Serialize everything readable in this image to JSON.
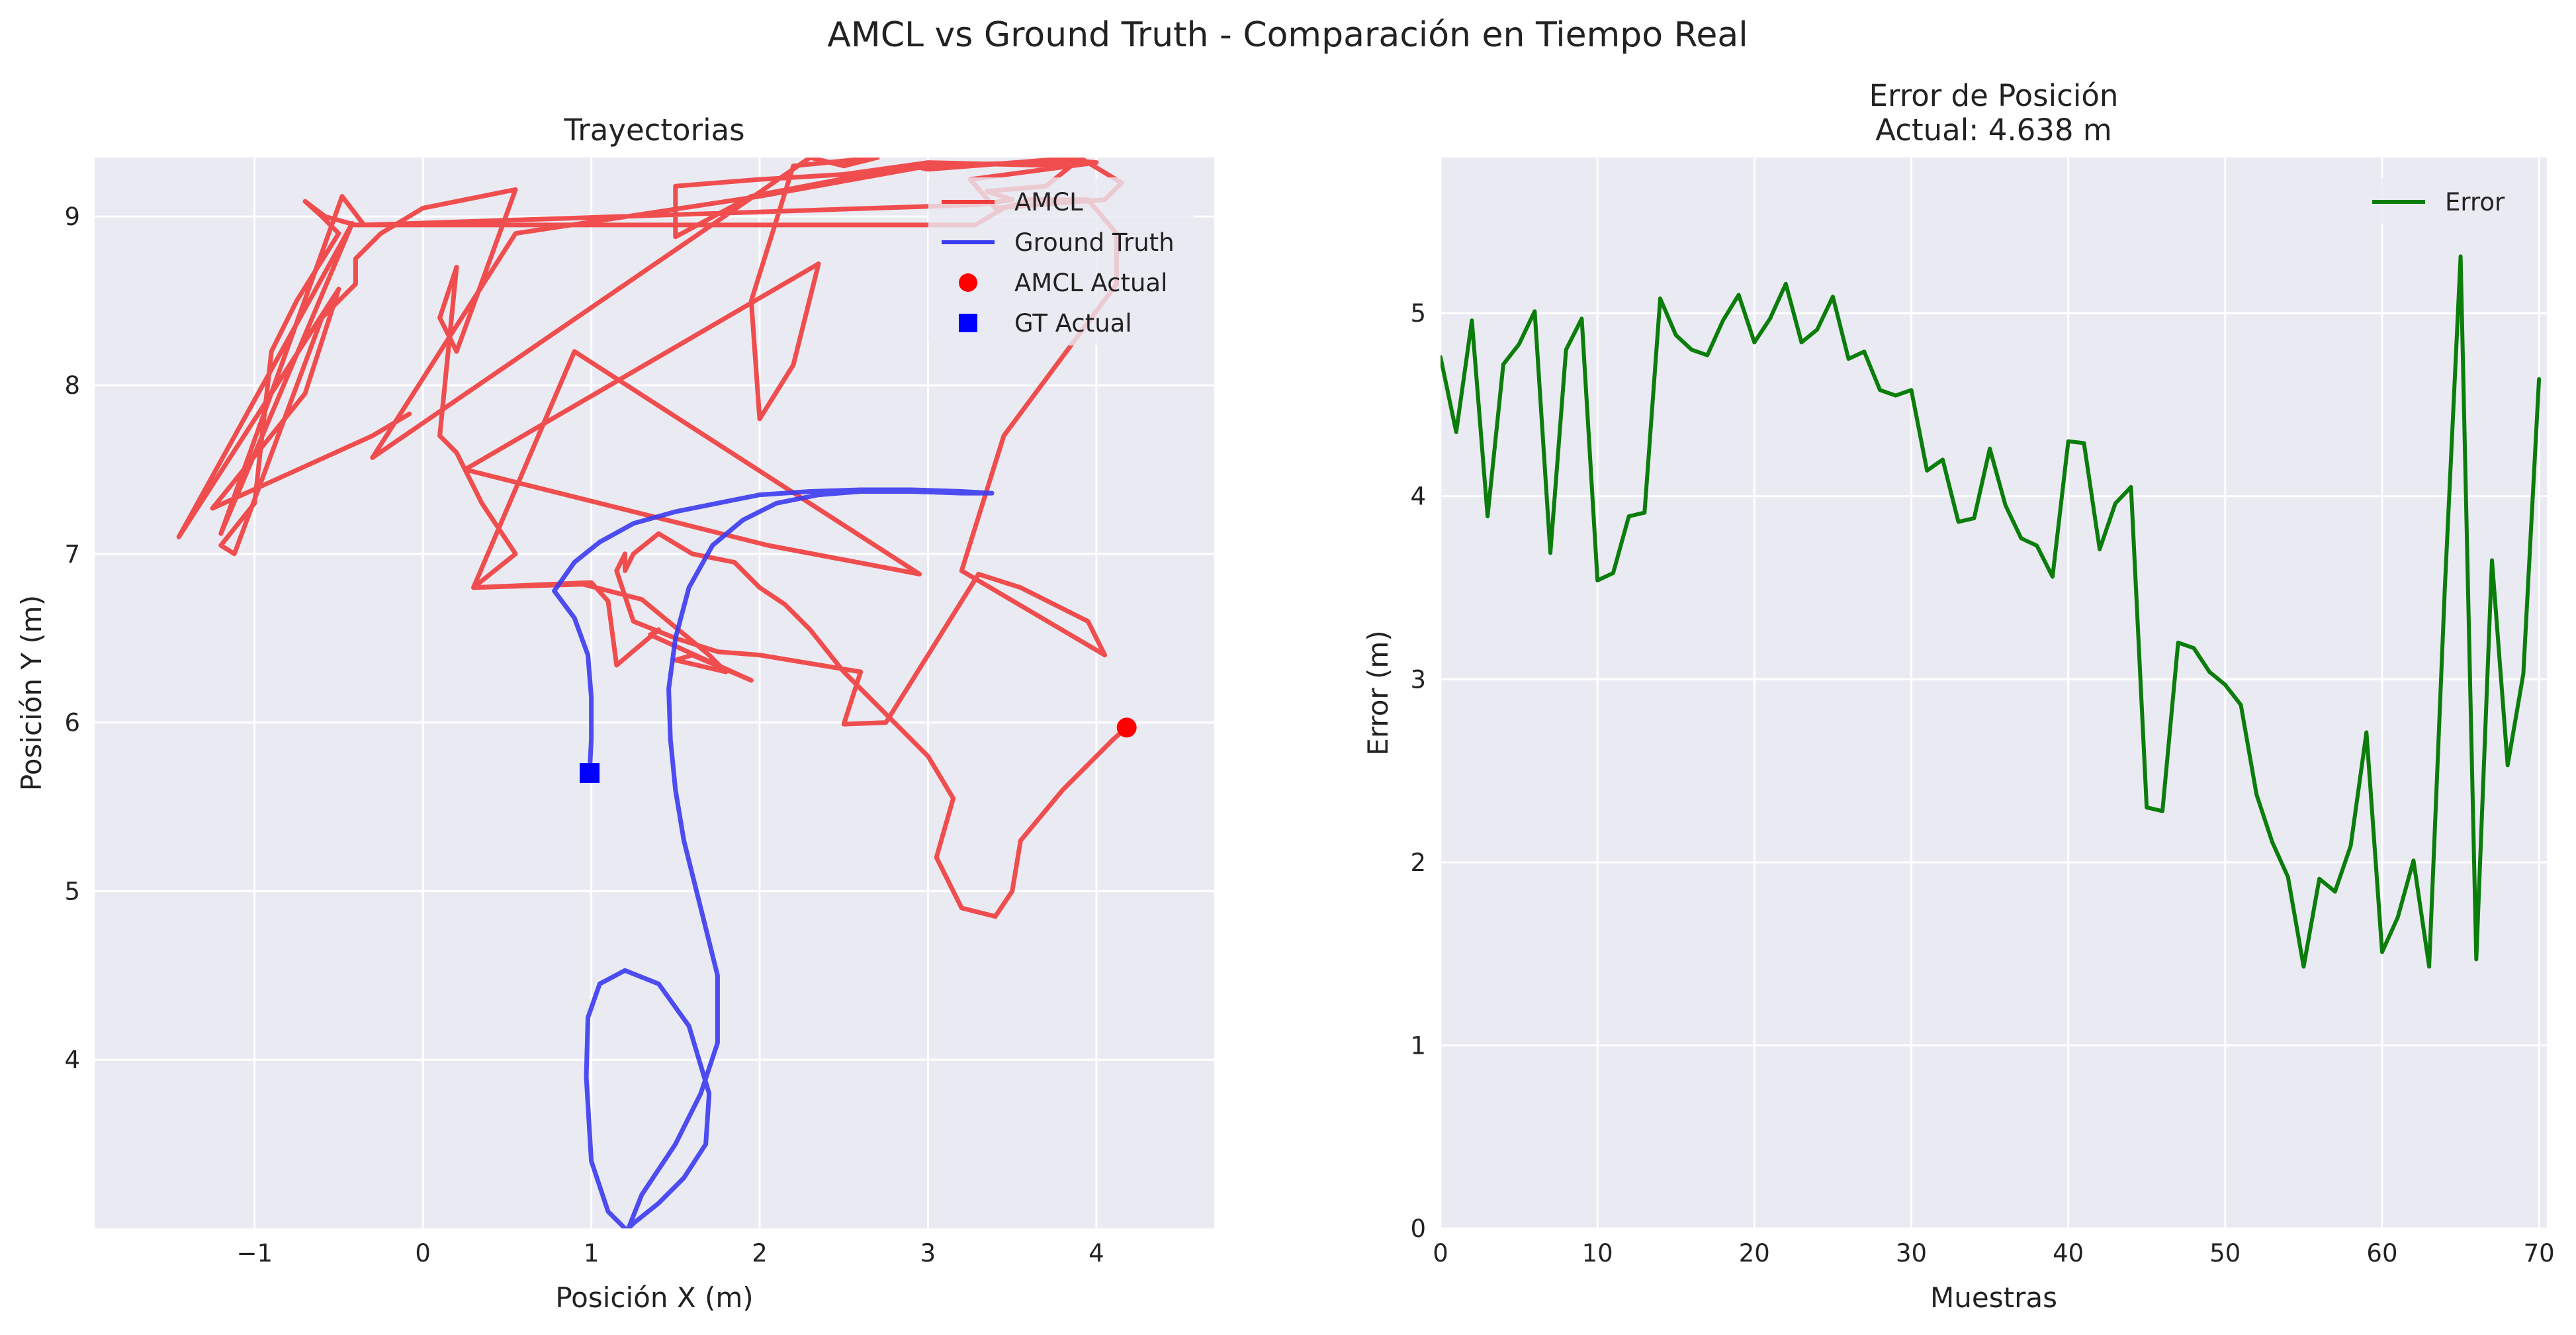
{
  "suptitle": "AMCL vs Ground Truth - Comparación en Tiempo Real",
  "chart_data": [
    {
      "type": "line",
      "title": "Trayectorias",
      "xlabel": "Posición X (m)",
      "ylabel": "Posición Y (m)",
      "xlim": [
        -1.95,
        4.7
      ],
      "ylim": [
        3.0,
        9.35
      ],
      "xticks": [
        -1,
        0,
        1,
        2,
        3,
        4
      ],
      "xtick_labels": [
        "−1",
        "0",
        "1",
        "2",
        "3",
        "4"
      ],
      "yticks": [
        4,
        5,
        6,
        7,
        8,
        9
      ],
      "ytick_labels": [
        "4",
        "5",
        "6",
        "7",
        "8",
        "9"
      ],
      "grid": true,
      "legend_position": "top-right",
      "series": [
        {
          "name": "AMCL",
          "color": "#f03c3c",
          "style": "line",
          "x": [
            -0.08,
            -0.3,
            -1.25,
            -0.7,
            -0.5,
            -1.45,
            -0.42,
            -1.2,
            -0.48,
            -0.35,
            3.3,
            3.5,
            3.35,
            3.7,
            3.85,
            3.0,
            2.5,
            2.0,
            1.5,
            1.5,
            1.95,
            2.9,
            3.0,
            3.9,
            4.15,
            4.05,
            3.4,
            3.25,
            4.0,
            3.9,
            3.0,
            2.0,
            0.55,
            -0.3,
            2.3,
            2.5,
            2.7,
            2.2,
            1.95,
            2.0,
            2.2,
            2.35,
            0.25,
            2.05,
            2.95,
            0.9,
            0.3,
            1.0,
            1.1,
            1.15,
            1.4,
            1.35,
            1.95,
            1.6,
            1.5,
            1.8,
            1.7,
            1.3,
            0.95,
            0.3,
            0.55,
            0.35,
            0.2,
            0.1,
            0.2,
            0.1,
            0.2,
            0.55,
            0.0,
            -0.25,
            -0.4,
            -0.4,
            -0.6,
            -1.12,
            -1.2,
            -1.0,
            -0.9,
            -0.75,
            -0.5,
            -0.6,
            -0.7,
            -0.58,
            -0.4,
            3.28,
            3.45,
            3.6,
            3.95,
            4.12,
            4.12,
            3.45,
            3.2,
            4.05,
            3.95,
            3.55,
            3.3,
            3.0,
            2.75,
            2.5,
            2.6,
            2.0,
            1.75,
            1.5,
            1.25,
            1.2,
            1.15,
            1.2,
            1.2,
            1.25,
            1.4,
            1.6,
            1.85,
            2.0,
            2.15,
            2.3,
            2.5,
            2.8,
            3.0,
            3.15,
            3.05,
            3.2,
            3.4,
            3.5,
            3.55,
            3.8,
            4.0,
            4.1,
            4.18
          ],
          "y": [
            7.83,
            7.7,
            7.27,
            7.95,
            8.57,
            7.1,
            8.96,
            7.12,
            9.12,
            8.95,
            9.07,
            9.1,
            9.15,
            9.18,
            9.3,
            9.32,
            9.25,
            9.22,
            9.18,
            8.88,
            9.12,
            9.3,
            9.28,
            9.35,
            9.2,
            9.1,
            9.05,
            9.22,
            9.32,
            9.33,
            9.3,
            9.12,
            8.9,
            7.57,
            9.35,
            9.3,
            9.35,
            9.3,
            8.5,
            7.8,
            8.12,
            8.72,
            7.5,
            7.05,
            6.88,
            8.2,
            6.8,
            6.83,
            6.72,
            6.34,
            6.55,
            6.52,
            6.25,
            6.4,
            6.37,
            6.3,
            6.4,
            6.73,
            6.82,
            6.8,
            7.0,
            7.3,
            7.6,
            7.7,
            8.7,
            8.4,
            8.2,
            9.16,
            9.05,
            8.9,
            8.75,
            8.6,
            8.4,
            7.0,
            7.05,
            7.3,
            8.2,
            8.5,
            8.9,
            9.0,
            9.09,
            9.0,
            8.95,
            8.95,
            9.05,
            9.1,
            9.1,
            8.9,
            8.6,
            7.7,
            6.9,
            6.4,
            6.6,
            6.8,
            6.88,
            6.4,
            6.0,
            5.99,
            6.3,
            6.4,
            6.42,
            6.5,
            6.6,
            6.75,
            6.9,
            7.0,
            6.9,
            7.0,
            7.12,
            7.0,
            6.95,
            6.8,
            6.7,
            6.55,
            6.3,
            6.0,
            5.8,
            5.55,
            5.2,
            4.9,
            4.85,
            5.0,
            5.3,
            5.6,
            5.8,
            5.9,
            5.97
          ]
        },
        {
          "name": "Ground Truth",
          "color": "#3b3bef",
          "style": "line",
          "x": [
            1.2,
            1.1,
            1.0,
            0.97,
            0.98,
            1.05,
            1.2,
            1.4,
            1.58,
            1.7,
            1.68,
            1.55,
            1.4,
            1.25,
            1.22,
            1.3,
            1.5,
            1.65,
            1.75,
            1.75,
            1.65,
            1.55,
            1.5,
            1.47,
            1.46,
            1.5,
            1.58,
            1.72,
            1.9,
            2.1,
            2.35,
            2.6,
            2.9,
            3.2,
            3.38,
            3.2,
            2.9,
            2.6,
            2.3,
            2.0,
            1.75,
            1.5,
            1.25,
            1.05,
            0.9,
            0.78,
            0.9,
            0.98,
            1.0,
            1.0,
            0.99
          ],
          "y": [
            3.0,
            3.1,
            3.4,
            3.9,
            4.25,
            4.45,
            4.53,
            4.45,
            4.2,
            3.8,
            3.5,
            3.3,
            3.15,
            3.03,
            3.0,
            3.2,
            3.5,
            3.8,
            4.1,
            4.5,
            4.9,
            5.3,
            5.6,
            5.9,
            6.2,
            6.5,
            6.8,
            7.05,
            7.2,
            7.3,
            7.35,
            7.37,
            7.37,
            7.36,
            7.36,
            7.37,
            7.38,
            7.38,
            7.37,
            7.35,
            7.3,
            7.25,
            7.18,
            7.07,
            6.95,
            6.78,
            6.62,
            6.4,
            6.15,
            5.9,
            5.7
          ]
        },
        {
          "name": "AMCL Actual",
          "color": "#ff0000",
          "style": "marker-circle",
          "x": [
            4.18
          ],
          "y": [
            5.97
          ]
        },
        {
          "name": "GT Actual",
          "color": "#0000ff",
          "style": "marker-square",
          "x": [
            0.99
          ],
          "y": [
            5.7
          ]
        }
      ]
    },
    {
      "type": "line",
      "title": "Error de Posición",
      "subtitle": "Actual: 4.638 m",
      "xlabel": "Muestras",
      "ylabel": "Error (m)",
      "xlim": [
        0,
        70.5
      ],
      "ylim": [
        0,
        5.85
      ],
      "xticks": [
        0,
        10,
        20,
        30,
        40,
        50,
        60,
        70
      ],
      "xtick_labels": [
        "0",
        "10",
        "20",
        "30",
        "40",
        "50",
        "60",
        "70"
      ],
      "yticks": [
        0,
        1,
        2,
        3,
        4,
        5
      ],
      "ytick_labels": [
        "0",
        "1",
        "2",
        "3",
        "4",
        "5"
      ],
      "grid": true,
      "legend_position": "top-right",
      "series": [
        {
          "name": "Error",
          "color": "#0b7d0b",
          "x": [
            0,
            1,
            2,
            3,
            4,
            5,
            6,
            7,
            8,
            9,
            10,
            11,
            12,
            13,
            14,
            15,
            16,
            17,
            18,
            19,
            20,
            21,
            22,
            23,
            24,
            25,
            26,
            27,
            28,
            29,
            30,
            31,
            32,
            33,
            34,
            35,
            36,
            37,
            38,
            39,
            40,
            41,
            42,
            43,
            44,
            45,
            46,
            47,
            48,
            49,
            50,
            51,
            52,
            53,
            54,
            55,
            56,
            57,
            58,
            59,
            60,
            61,
            62,
            63,
            64,
            65,
            66,
            67,
            68,
            69,
            70
          ],
          "values": [
            4.76,
            4.35,
            4.96,
            3.89,
            4.72,
            4.83,
            5.01,
            3.69,
            4.8,
            4.97,
            3.54,
            3.58,
            3.89,
            3.91,
            5.08,
            4.88,
            4.8,
            4.77,
            4.96,
            5.1,
            4.84,
            4.97,
            5.16,
            4.84,
            4.91,
            5.09,
            4.75,
            4.79,
            4.58,
            4.55,
            4.58,
            4.14,
            4.2,
            3.86,
            3.88,
            4.26,
            3.95,
            3.77,
            3.73,
            3.56,
            4.3,
            4.29,
            3.71,
            3.96,
            4.05,
            2.3,
            2.28,
            3.2,
            3.17,
            3.04,
            2.97,
            2.86,
            2.37,
            2.11,
            1.92,
            1.43,
            1.91,
            1.84,
            2.09,
            2.71,
            1.51,
            1.7,
            2.01,
            1.43,
            3.5,
            5.31,
            1.47,
            3.65,
            2.53,
            3.03,
            4.64
          ]
        }
      ]
    }
  ]
}
